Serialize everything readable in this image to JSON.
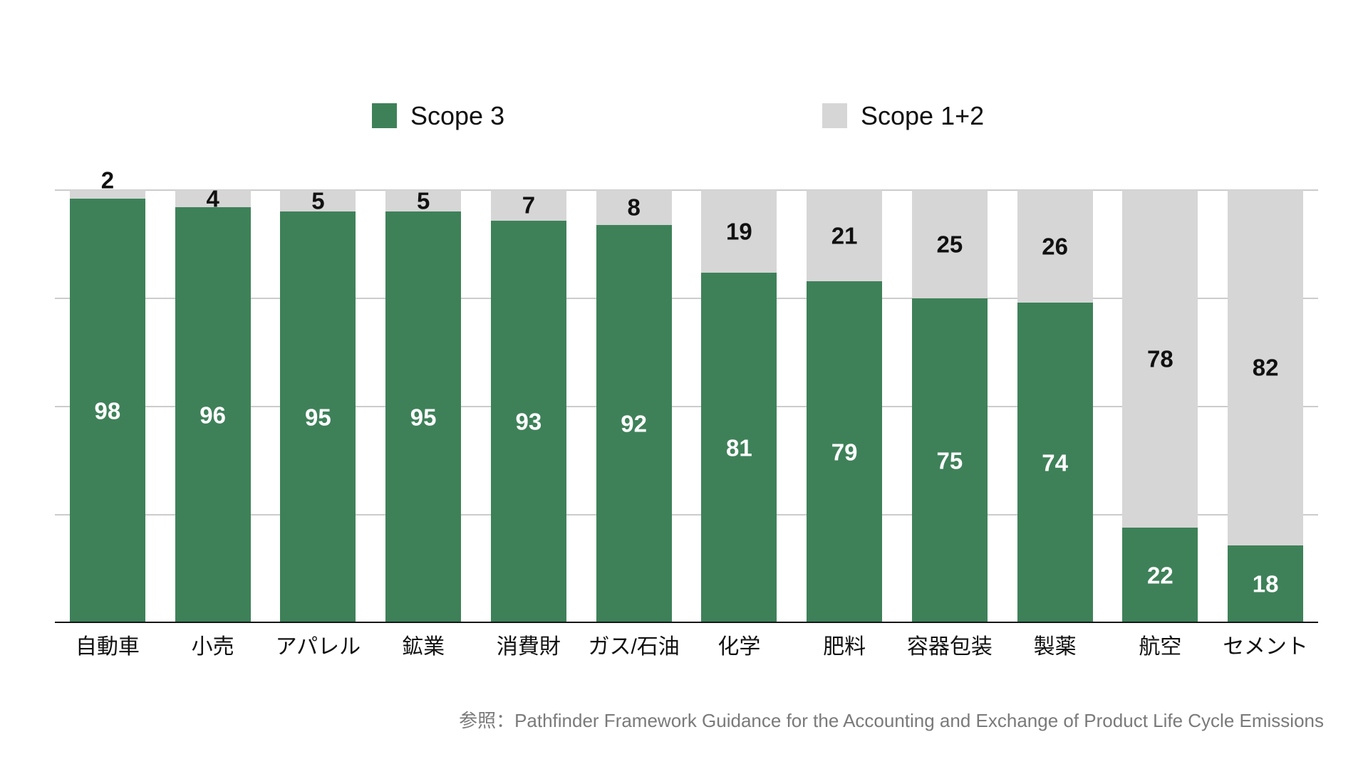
{
  "chart_data": {
    "type": "bar",
    "stacked": true,
    "orientation": "vertical",
    "categories": [
      "自動車",
      "小売",
      "アパレル",
      "鉱業",
      "消費財",
      "ガス/石油",
      "化学",
      "肥料",
      "容器包装",
      "製薬",
      "航空",
      "セメント"
    ],
    "series": [
      {
        "name": "Scope 3",
        "color": "#3E8159",
        "label_color": "#ffffff",
        "values": [
          98,
          96,
          95,
          95,
          93,
          92,
          81,
          79,
          75,
          74,
          22,
          18
        ]
      },
      {
        "name": "Scope 1+2",
        "color": "#D6D6D6",
        "label_color": "#111111",
        "values": [
          2,
          4,
          5,
          5,
          7,
          8,
          19,
          21,
          25,
          26,
          78,
          82
        ]
      }
    ],
    "ylim": [
      0,
      100
    ],
    "grid": "horizontal",
    "gridline_values": [
      100,
      75,
      50,
      25
    ],
    "y_axis_labels_visible": false,
    "legend_position": "top",
    "caption": "参照：Pathfinder Framework Guidance for the Accounting and Exchange of Product Life Cycle Emissions",
    "colors": {
      "background": "#ffffff",
      "gridline": "#cccccc",
      "axis": "#161616",
      "caption_text": "#7a7a7a"
    }
  }
}
